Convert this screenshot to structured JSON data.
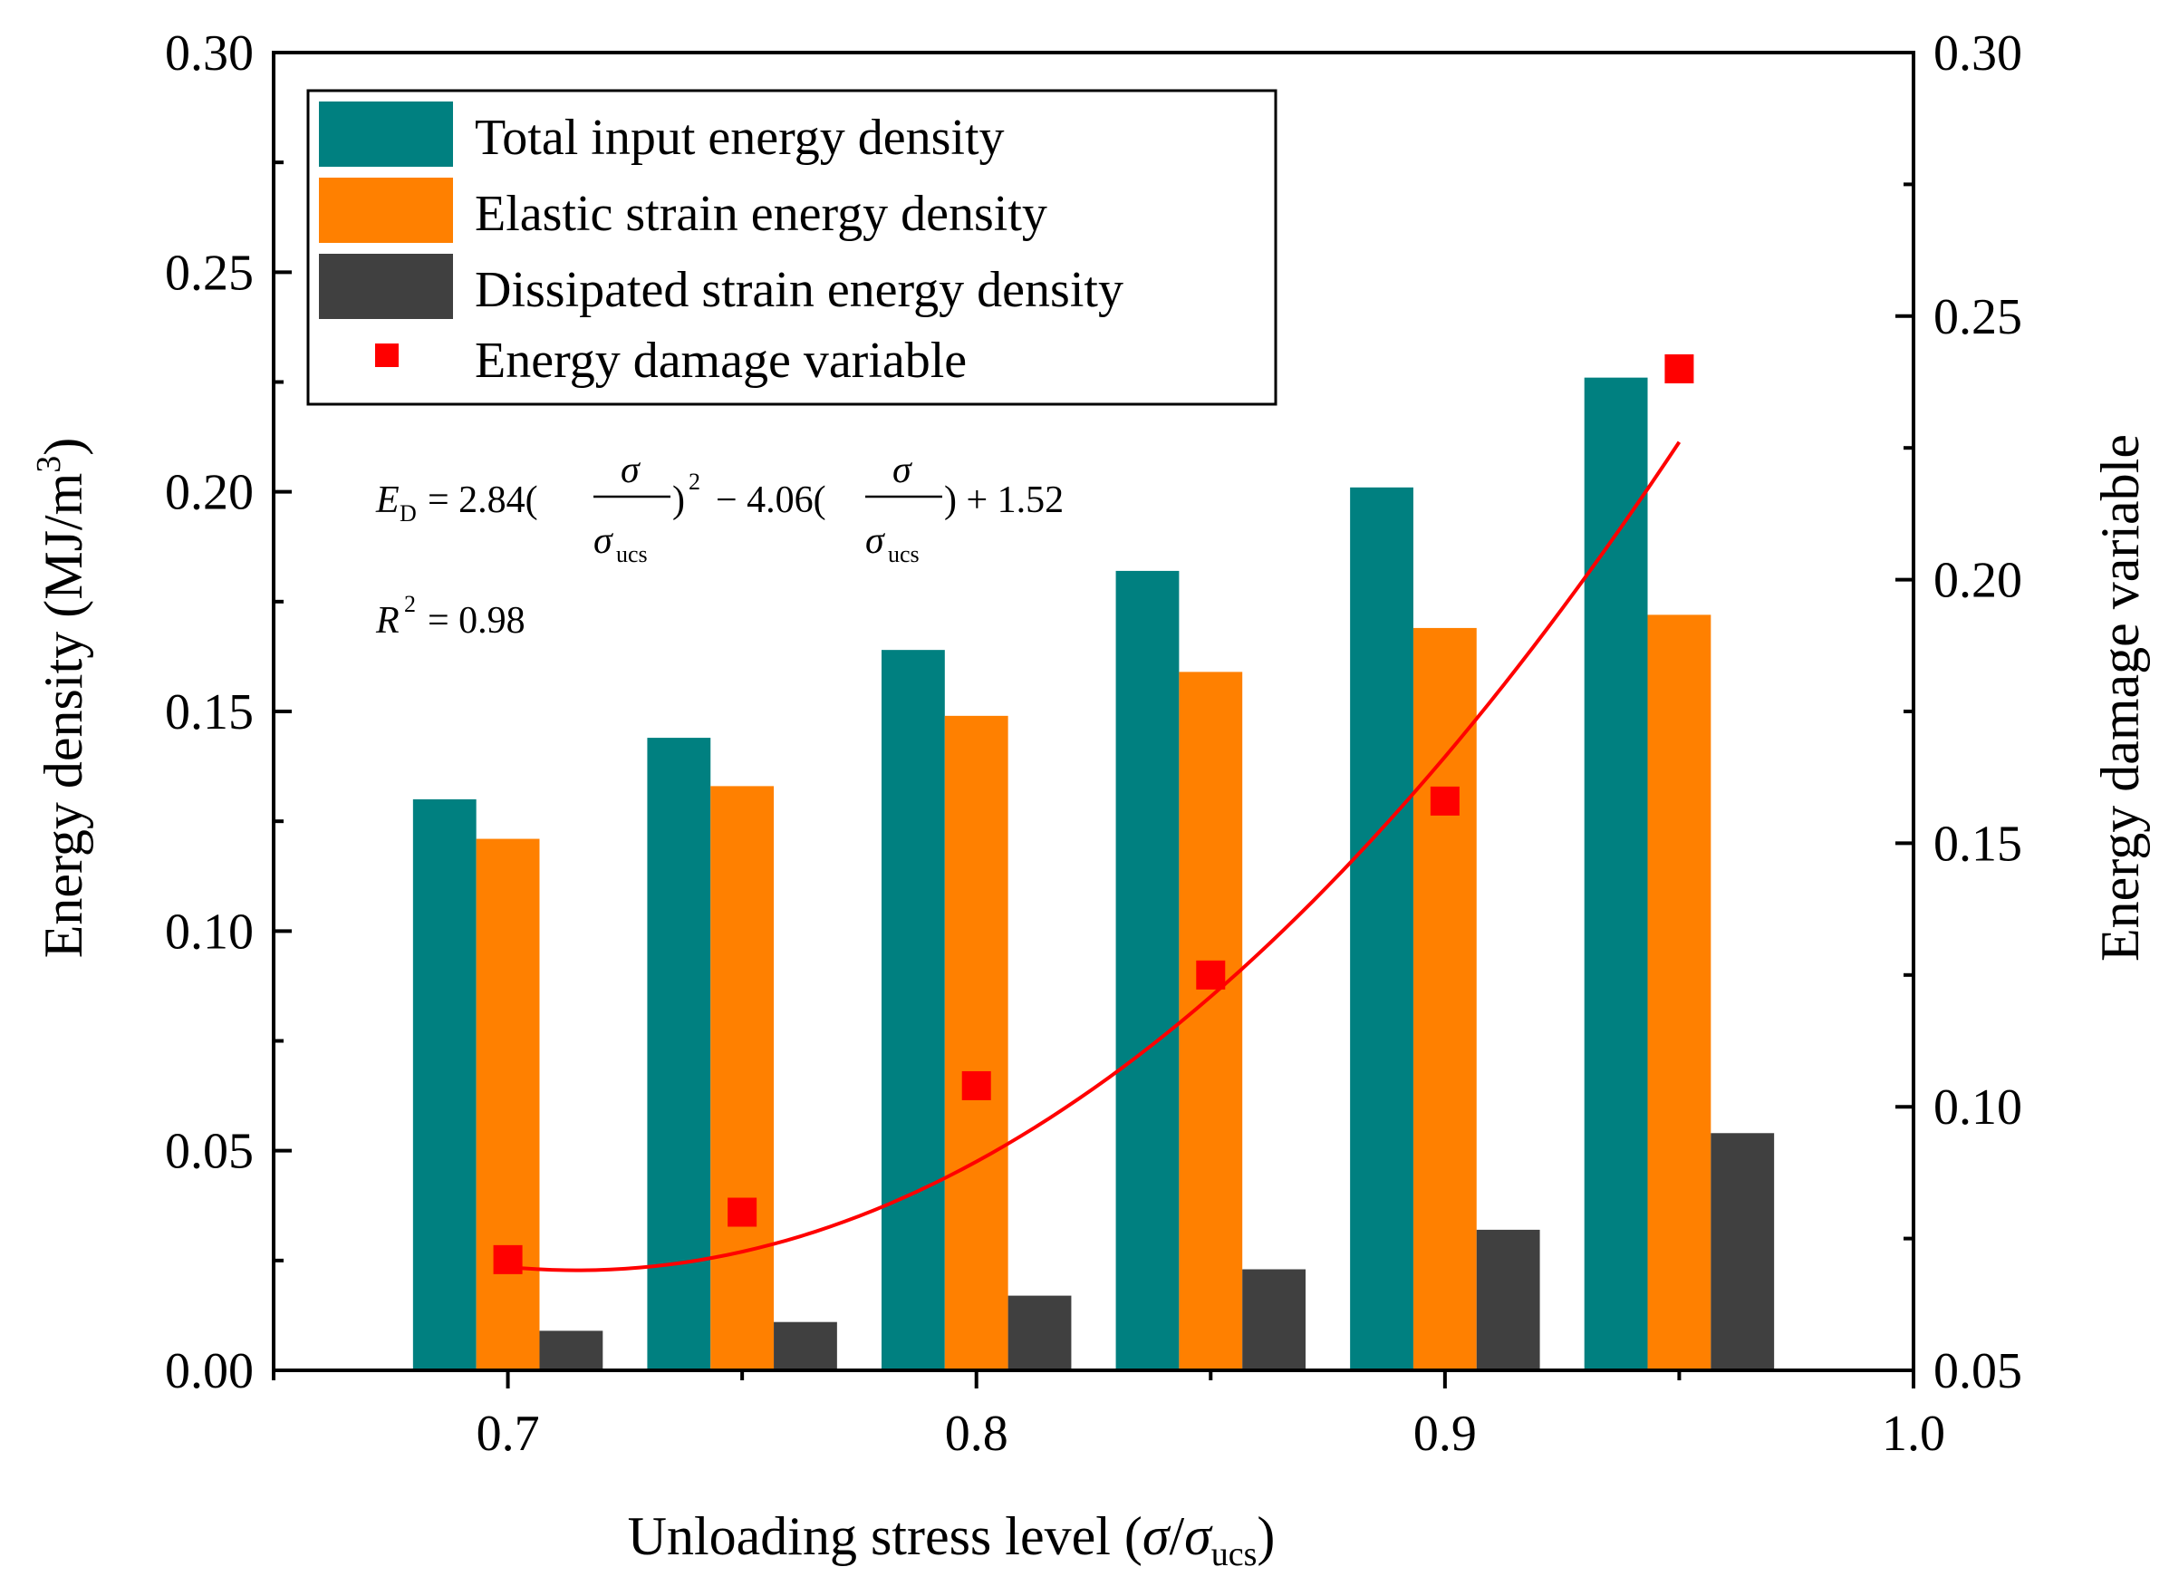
{
  "colors": {
    "total": "#008080",
    "elastic": "#ff8000",
    "dissipated": "#404040",
    "damage": "#ff0000",
    "axis": "#000000"
  },
  "chart_data": {
    "type": "bar",
    "categories": [
      0.7,
      0.75,
      0.8,
      0.85,
      0.9,
      0.95
    ],
    "x_tick_labels": [
      "0.7",
      "0.8",
      "0.9",
      "1.0"
    ],
    "x_ticks": [
      0.7,
      0.8,
      0.9,
      1.0
    ],
    "xlim": [
      0.65,
      1.0
    ],
    "ylim": [
      0.0,
      0.3
    ],
    "y_tick_labels": [
      "0.00",
      "0.05",
      "0.10",
      "0.15",
      "0.20",
      "0.25",
      "0.30"
    ],
    "y_ticks": [
      0.0,
      0.05,
      0.1,
      0.15,
      0.2,
      0.25,
      0.3
    ],
    "y2lim": [
      0.05,
      0.3
    ],
    "y2_tick_labels": [
      "0.05",
      "0.10",
      "0.15",
      "0.20",
      "0.25",
      "0.30"
    ],
    "y2_ticks": [
      0.05,
      0.1,
      0.15,
      0.2,
      0.25,
      0.3
    ],
    "xlabel_main": "Unloading stress level (",
    "xlabel_sigma": "σ",
    "xlabel_slash": "/",
    "xlabel_sub": "ucs",
    "xlabel_close": ")",
    "ylabel": "Energy density (MJ/m",
    "ylabel_sup": "3",
    "ylabel_close": ")",
    "y2label": "Energy damage variable",
    "series": [
      {
        "name": "Total input energy density",
        "axis": "left",
        "kind": "bar",
        "values": [
          0.13,
          0.144,
          0.164,
          0.182,
          0.201,
          0.226
        ]
      },
      {
        "name": "Elastic strain energy density",
        "axis": "left",
        "kind": "bar",
        "values": [
          0.121,
          0.133,
          0.149,
          0.159,
          0.169,
          0.172
        ]
      },
      {
        "name": "Dissipated strain energy density",
        "axis": "left",
        "kind": "bar",
        "values": [
          0.009,
          0.011,
          0.017,
          0.023,
          0.032,
          0.054
        ]
      },
      {
        "name": "Energy damage variable",
        "axis": "right",
        "kind": "scatter",
        "values": [
          0.071,
          0.08,
          0.104,
          0.125,
          0.158,
          0.24
        ]
      }
    ],
    "fit": {
      "a": 2.84,
      "b": -4.06,
      "c": 1.52,
      "x_range": [
        0.7,
        0.95
      ],
      "eq_lhs": "E",
      "eq_lhs_sub": "D",
      "eq_part1": "= 2.84(",
      "eq_sigma": "σ",
      "eq_sub": "ucs",
      "eq_close_sq": ")",
      "eq_sq": "2",
      "eq_part2": "− 4.06(",
      "eq_part3": ") + 1.52",
      "r2_lhs": "R",
      "r2_sup": "2",
      "r2_rhs": "= 0.98"
    }
  }
}
